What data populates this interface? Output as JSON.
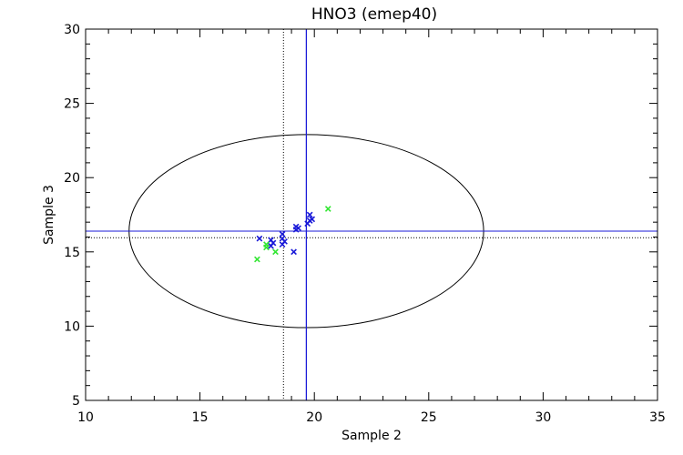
{
  "chart_data": {
    "type": "scatter",
    "title": "HNO3 (emep40)",
    "xlabel": "Sample 2",
    "ylabel": "Sample 3",
    "xlim": [
      10,
      35
    ],
    "ylim": [
      5,
      30
    ],
    "x_ticks": [
      10,
      15,
      20,
      25,
      30,
      35
    ],
    "y_ticks": [
      5,
      10,
      15,
      20,
      25,
      30
    ],
    "grid": false,
    "colors": {
      "axis": "#000000",
      "blue_marks": "#1a1ad8",
      "green_marks": "#33e633",
      "mean_lines": "#1a1ad8",
      "ellipse": "#000000"
    },
    "series": [
      {
        "color": "#1a1ad8",
        "points": [
          [
            17.6,
            15.9
          ],
          [
            18.1,
            15.8
          ],
          [
            18.2,
            15.6
          ],
          [
            18.1,
            15.4
          ],
          [
            18.6,
            16.2
          ],
          [
            18.6,
            15.9
          ],
          [
            18.7,
            15.7
          ],
          [
            18.6,
            15.5
          ],
          [
            19.1,
            15.0
          ],
          [
            19.2,
            16.5
          ],
          [
            19.3,
            16.6
          ],
          [
            19.2,
            16.7
          ],
          [
            19.7,
            16.9
          ],
          [
            19.8,
            17.1
          ],
          [
            19.9,
            17.2
          ],
          [
            19.8,
            17.5
          ]
        ]
      },
      {
        "color": "#33e633",
        "points": [
          [
            17.5,
            14.5
          ],
          [
            17.9,
            15.3
          ],
          [
            17.9,
            15.5
          ],
          [
            18.3,
            15.0
          ],
          [
            20.6,
            17.9
          ]
        ]
      }
    ],
    "reference_lines": {
      "solid_vertical_x": 19.65,
      "dotted_vertical_x": 18.65,
      "solid_horizontal_y": 16.4,
      "dotted_horizontal_y": 15.95
    },
    "ellipse": {
      "cx": 19.65,
      "cy": 16.4,
      "rx": 7.75,
      "ry": 6.5
    }
  }
}
